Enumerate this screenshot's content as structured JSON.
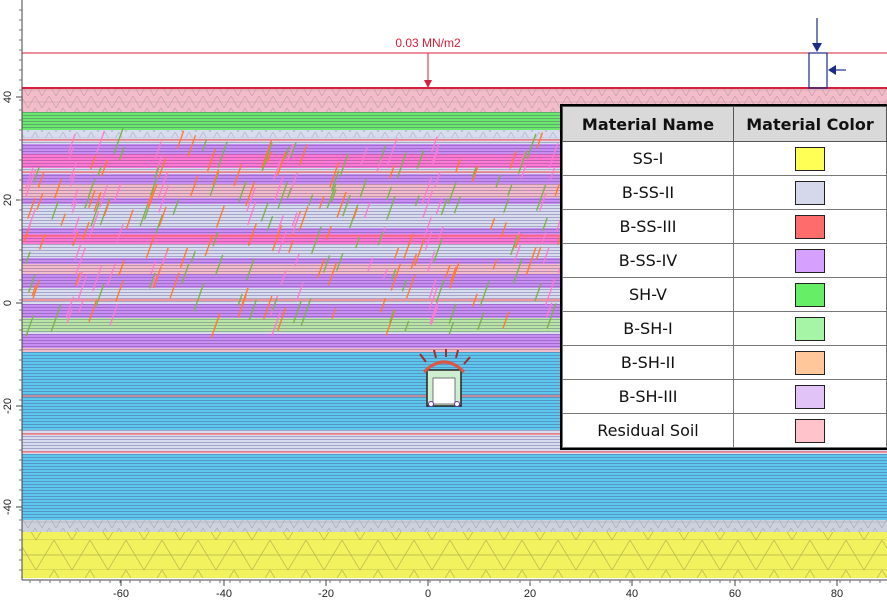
{
  "load": {
    "label": "0.03 MN/m2"
  },
  "axes": {
    "x_ticks": [
      "-60",
      "-40",
      "-20",
      "0",
      "20",
      "40",
      "60",
      "80"
    ],
    "y_ticks": [
      "40",
      "20",
      "0",
      "-20",
      "-40"
    ]
  },
  "legend": {
    "header_name": "Material Name",
    "header_color": "Material Color",
    "materials": [
      {
        "name": "SS-I",
        "color": "#ffff55"
      },
      {
        "name": "B-SS-II",
        "color": "#d4d8ea"
      },
      {
        "name": "B-SS-III",
        "color": "#ff6c6c"
      },
      {
        "name": "B-SS-IV",
        "color": "#d6a0ff"
      },
      {
        "name": "SH-V",
        "color": "#66ee66"
      },
      {
        "name": "B-SH-I",
        "color": "#a6f5a6"
      },
      {
        "name": "B-SH-II",
        "color": "#ffc79a"
      },
      {
        "name": "B-SH-III",
        "color": "#e2c3f7"
      },
      {
        "name": "Residual Soil",
        "color": "#ffc3cc"
      }
    ]
  },
  "layer_colors": {
    "residual": "#f3bcc9",
    "green": "#6be86b",
    "lavender": "#d8dcef",
    "purple": "#c98ef2",
    "cyan": "#5ec8ec",
    "yellow": "#f2f25e",
    "grey": "#cdd1dc",
    "red": "#ff6b6b",
    "orange": "#ff7a2e",
    "pink": "#ff7ad0",
    "olive": "#7ab34a"
  }
}
